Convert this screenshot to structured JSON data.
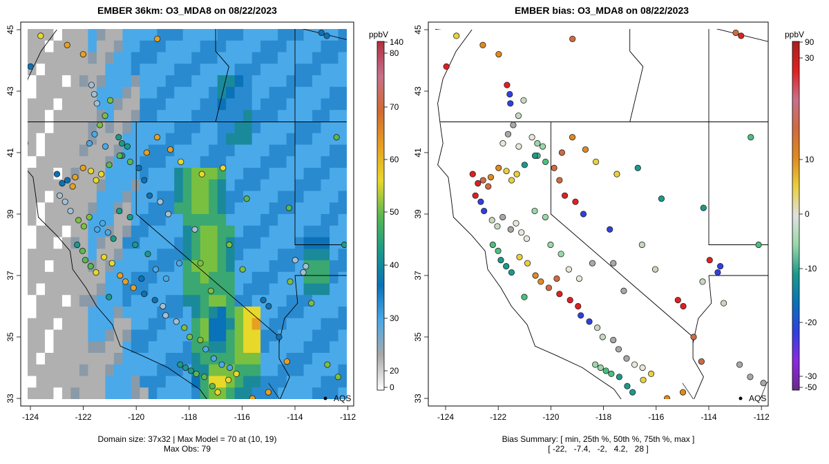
{
  "left_panel": {
    "title": "EMBER 36km: O3_MDA8 on 08/22/2023",
    "footer_line1": "Domain size: 37x32 | Max Model = 70 at (10, 19)",
    "footer_line2": "Max Obs: 79",
    "network_label": "AQS",
    "colorbar": {
      "unit": "ppbV",
      "ticks": [
        "140",
        "80",
        "70",
        "60",
        "50",
        "40",
        "30",
        "20",
        "0"
      ],
      "stops": [
        "#ffffff",
        "#a9a9a9",
        "#4aa9e8",
        "#0a72b8",
        "#1a9a8a",
        "#59b850",
        "#e8d82a",
        "#e8a020",
        "#d06a30",
        "#c8708a",
        "#b03040"
      ]
    }
  },
  "right_panel": {
    "title": "EMBER bias: O3_MDA8 on 08/22/2023",
    "footer_line1": "Bias Summary: [ min, 25th %, 50th %, 75th %, max ]",
    "footer_line2": "[ -22,   -7.4,   -2,   4.2,   28 ]",
    "network_label": "AQS",
    "colorbar": {
      "unit": "ppbV",
      "ticks": [
        "90",
        "30",
        "10",
        "0",
        "-10",
        "-20",
        "-30",
        "-50"
      ],
      "stops": [
        "#6a2a8a",
        "#8a2ae0",
        "#3040e0",
        "#0a72b8",
        "#1a9a8a",
        "#9ad8a8",
        "#e0e0e0",
        "#e8d040",
        "#e08a20",
        "#d06a40",
        "#c8708a",
        "#e02020",
        "#a82020"
      ]
    }
  },
  "x_ticks": [
    "-124",
    "-122",
    "-120",
    "-118",
    "-116",
    "-114",
    "-112"
  ],
  "y_ticks": [
    "33",
    "35",
    "37",
    "39",
    "41",
    "43",
    "45"
  ]
}
